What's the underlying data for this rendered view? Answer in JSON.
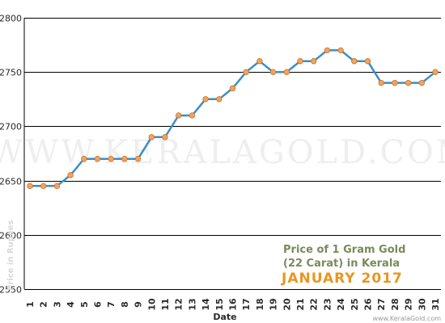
{
  "chart_data": {
    "type": "line",
    "title": "Price of 1 Gram Gold",
    "subtitle": "(22 Carat) in Kerala",
    "period": "JANUARY 2017",
    "xlabel": "Date",
    "ylabel": "Price in Rupees",
    "ylim": [
      2550,
      2800
    ],
    "yticks": [
      "2550",
      "2600",
      "2650",
      "2700",
      "2750",
      "2800"
    ],
    "categories": [
      "1",
      "2",
      "3",
      "4",
      "5",
      "6",
      "7",
      "8",
      "9",
      "10",
      "11",
      "12",
      "13",
      "14",
      "15",
      "16",
      "17",
      "18",
      "19",
      "20",
      "21",
      "22",
      "23",
      "24",
      "25",
      "26",
      "27",
      "28",
      "29",
      "30",
      "31"
    ],
    "values": [
      2645,
      2645,
      2645,
      2655,
      2670,
      2670,
      2670,
      2670,
      2670,
      2690,
      2690,
      2710,
      2710,
      2725,
      2725,
      2735,
      2750,
      2760,
      2750,
      2750,
      2760,
      2760,
      2770,
      2770,
      2760,
      2760,
      2740,
      2740,
      2740,
      2740,
      2750
    ],
    "grid": "horizontal",
    "line_color": "#3a8fc7",
    "marker_color": "#f5a25a"
  },
  "watermark": "WWW.KERALAGOLD.COM",
  "site": "www.KeralaGold.com"
}
